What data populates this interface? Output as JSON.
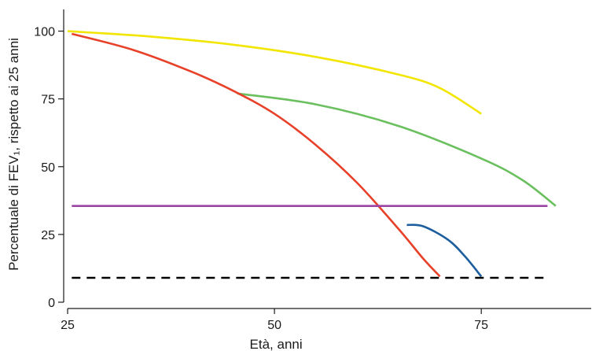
{
  "chart_data": {
    "type": "line",
    "title": "",
    "xlabel": "Età, anni",
    "ylabel": "Percentuale di FEV₁, rispetto ai 25 anni",
    "xlim": [
      25,
      88
    ],
    "ylim": [
      0,
      108
    ],
    "x_ticks": [
      25,
      50,
      75
    ],
    "y_ticks": [
      0,
      25,
      50,
      75,
      100
    ],
    "grid": false,
    "legend": "none",
    "series": [
      {
        "color": "#f2e600",
        "dash": "solid",
        "points": [
          [
            25,
            100
          ],
          [
            35,
            98
          ],
          [
            45,
            95
          ],
          [
            55,
            90.5
          ],
          [
            65,
            84
          ],
          [
            70,
            79
          ],
          [
            75,
            69.5
          ]
        ]
      },
      {
        "color": "#6abf5e",
        "dash": "solid",
        "points": [
          [
            45.5,
            77
          ],
          [
            55,
            73
          ],
          [
            65,
            65
          ],
          [
            75,
            53
          ],
          [
            80,
            45
          ],
          [
            84,
            35.5
          ]
        ]
      },
      {
        "color": "#e8412a",
        "dash": "solid",
        "points": [
          [
            25.5,
            99
          ],
          [
            33,
            93
          ],
          [
            40,
            85
          ],
          [
            45,
            78
          ],
          [
            50,
            69.5
          ],
          [
            55,
            58
          ],
          [
            60,
            44
          ],
          [
            65,
            27
          ],
          [
            68,
            16
          ],
          [
            70,
            9.5
          ]
        ]
      },
      {
        "color": "#9b44a3",
        "dash": "solid",
        "points": [
          [
            25.5,
            35.5
          ],
          [
            83,
            35.5
          ]
        ]
      },
      {
        "color": "#1d5e9e",
        "dash": "solid",
        "points": [
          [
            66,
            28.5
          ],
          [
            68,
            28
          ],
          [
            71,
            23
          ],
          [
            73,
            17
          ],
          [
            75,
            9.5
          ]
        ]
      },
      {
        "color": "#000000",
        "dash": "dashed",
        "points": [
          [
            25.5,
            9
          ],
          [
            83,
            9
          ]
        ]
      }
    ]
  }
}
